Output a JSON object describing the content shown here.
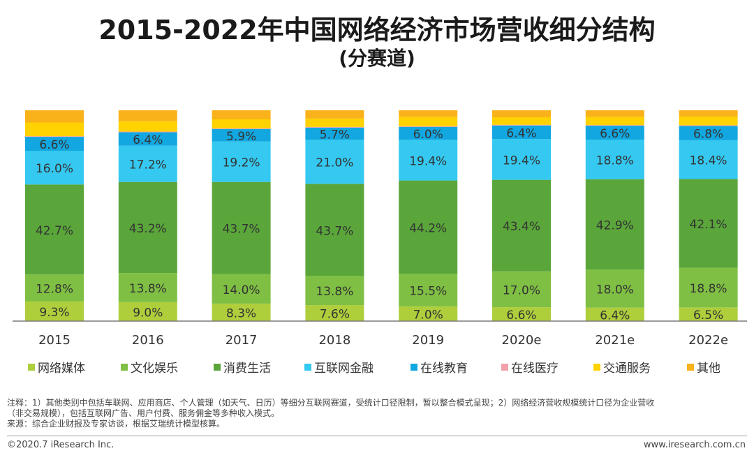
{
  "chart_data": {
    "type": "stacked-bar",
    "title": "2015-2022年中国网络经济市场营收细分结构",
    "subtitle": "(分赛道)",
    "categories": [
      "2015",
      "2016",
      "2017",
      "2018",
      "2019",
      "2020e",
      "2021e",
      "2022e"
    ],
    "ylim": [
      0,
      100
    ],
    "series": [
      {
        "name": "网络媒体",
        "color": "#aece3c",
        "values": [
          9.3,
          9.0,
          8.3,
          7.6,
          7.0,
          6.6,
          6.4,
          6.5
        ],
        "labels": [
          "9.3%",
          "9.0%",
          "8.3%",
          "7.6%",
          "7.0%",
          "6.6%",
          "6.4%",
          "6.5%"
        ]
      },
      {
        "name": "文化娱乐",
        "color": "#7fbf43",
        "values": [
          12.8,
          13.8,
          14.0,
          13.8,
          15.5,
          17.0,
          18.0,
          18.8
        ],
        "labels": [
          "12.8%",
          "13.8%",
          "14.0%",
          "13.8%",
          "15.5%",
          "17.0%",
          "18.0%",
          "18.8%"
        ]
      },
      {
        "name": "消费生活",
        "color": "#5aa63a",
        "values": [
          42.7,
          43.2,
          43.7,
          43.7,
          44.2,
          43.4,
          42.9,
          42.1
        ],
        "labels": [
          "42.7%",
          "43.2%",
          "43.7%",
          "43.7%",
          "44.2%",
          "43.4%",
          "42.9%",
          "42.1%"
        ]
      },
      {
        "name": "互联网金融",
        "color": "#35c8f0",
        "values": [
          16.0,
          17.2,
          19.2,
          21.0,
          19.4,
          19.4,
          18.8,
          18.4
        ],
        "labels": [
          "16.0%",
          "17.2%",
          "19.2%",
          "21.0%",
          "19.4%",
          "19.4%",
          "18.8%",
          "18.4%"
        ]
      },
      {
        "name": "在线教育",
        "color": "#12a7e0",
        "values": [
          6.6,
          6.4,
          5.9,
          5.7,
          6.0,
          6.4,
          6.6,
          6.8
        ],
        "labels": [
          "6.6%",
          "6.4%",
          "5.9%",
          "5.7%",
          "6.0%",
          "6.4%",
          "6.6%",
          "6.8%"
        ]
      },
      {
        "name": "在线医疗",
        "color": "#f2a1a8",
        "values": [
          0.3,
          0.3,
          0.3,
          0.3,
          0.3,
          0.3,
          0.3,
          0.3
        ],
        "labels": [
          "",
          "",
          "",
          "",
          "",
          "",
          "",
          ""
        ]
      },
      {
        "name": "交通服务",
        "color": "#ffd200",
        "values": [
          6.5,
          4.9,
          4.3,
          4.0,
          4.5,
          3.6,
          3.9,
          4.1
        ],
        "labels": [
          "",
          "",
          "",
          "",
          "",
          "",
          "",
          ""
        ]
      },
      {
        "name": "其他",
        "color": "#f9b21a",
        "values": [
          5.8,
          5.2,
          4.3,
          3.9,
          3.1,
          3.3,
          3.1,
          3.0
        ],
        "labels": [
          "",
          "",
          "",
          "",
          "",
          "",
          "",
          ""
        ]
      }
    ],
    "xlabel": "",
    "ylabel": "",
    "legend": "bottom",
    "grid": false
  },
  "notes": {
    "line1": "注释：1）其他类别中包括车联网、应用商店、个人管理（如天气、日历）等细分互联网赛道，受统计口径限制，暂以整合模式呈现；2）网络经济营收规模统计口径为企业营收",
    "line2": "（非交易规模），包括互联网广告、用户付费、服务佣金等多种收入模式。",
    "line3": "来源：综合企业财报及专家访谈，根据艾瑞统计模型核算。"
  },
  "footer": {
    "copyright": "©2020.7 iResearch Inc.",
    "website": "www.iresearch.com.cn"
  }
}
